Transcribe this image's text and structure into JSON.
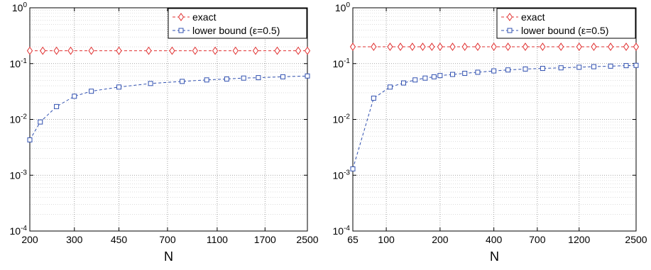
{
  "chart_data": [
    {
      "type": "line",
      "title": "",
      "xlabel": "N",
      "ylabel": "",
      "xscale": "log",
      "yscale": "log",
      "xlim": [
        200,
        2500
      ],
      "ylim": [
        0.0001,
        1
      ],
      "xticks": [
        200,
        300,
        450,
        700,
        1100,
        1700,
        2500
      ],
      "xtick_labels": [
        "200",
        "300",
        "450",
        "700",
        "1100",
        "1700",
        "2500"
      ],
      "yticks": [
        0.0001,
        0.001,
        0.01,
        0.1,
        1
      ],
      "ytick_labels": [
        {
          "base": "10",
          "exp": "-4"
        },
        {
          "base": "10",
          "exp": "-3"
        },
        {
          "base": "10",
          "exp": "-2"
        },
        {
          "base": "10",
          "exp": "-1"
        },
        {
          "base": "10",
          "exp": "0"
        }
      ],
      "grid": true,
      "legend": "top-right",
      "series": [
        {
          "name": "exact",
          "color": "#e03030",
          "marker": "diamond",
          "linestyle": "dashed",
          "x": [
            200,
            225,
            255,
            290,
            350,
            450,
            590,
            730,
            900,
            1080,
            1300,
            1560,
            1900,
            2300,
            2500
          ],
          "y": [
            0.17,
            0.17,
            0.17,
            0.17,
            0.17,
            0.17,
            0.17,
            0.17,
            0.17,
            0.17,
            0.17,
            0.17,
            0.17,
            0.17,
            0.17
          ]
        },
        {
          "name": "lower bound (ε=0.5)",
          "color": "#3050b0",
          "marker": "square",
          "linestyle": "dashed",
          "x": [
            200,
            220,
            255,
            300,
            350,
            450,
            600,
            800,
            1000,
            1200,
            1400,
            1600,
            2000,
            2500
          ],
          "y": [
            0.0043,
            0.009,
            0.017,
            0.026,
            0.032,
            0.038,
            0.044,
            0.048,
            0.051,
            0.053,
            0.055,
            0.056,
            0.058,
            0.06
          ]
        }
      ]
    },
    {
      "type": "line",
      "title": "",
      "xlabel": "N",
      "ylabel": "",
      "xscale": "log",
      "yscale": "log",
      "xlim": [
        65,
        2500
      ],
      "ylim": [
        0.0001,
        1
      ],
      "xticks": [
        65,
        100,
        200,
        400,
        700,
        1200,
        2500
      ],
      "xtick_labels": [
        "65",
        "100",
        "200",
        "400",
        "700",
        "1200",
        "2500"
      ],
      "yticks": [
        0.0001,
        0.001,
        0.01,
        0.1,
        1
      ],
      "ytick_labels": [
        {
          "base": "10",
          "exp": "-4"
        },
        {
          "base": "10",
          "exp": "-3"
        },
        {
          "base": "10",
          "exp": "-2"
        },
        {
          "base": "10",
          "exp": "-1"
        },
        {
          "base": "10",
          "exp": "0"
        }
      ],
      "grid": true,
      "legend": "top-right",
      "series": [
        {
          "name": "exact",
          "color": "#e03030",
          "marker": "diamond",
          "linestyle": "dashed",
          "x": [
            65,
            85,
            105,
            120,
            140,
            160,
            180,
            200,
            235,
            275,
            325,
            400,
            480,
            600,
            750,
            950,
            1200,
            1450,
            1800,
            2200,
            2500
          ],
          "y": [
            0.2,
            0.2,
            0.2,
            0.2,
            0.2,
            0.2,
            0.2,
            0.2,
            0.2,
            0.2,
            0.2,
            0.2,
            0.2,
            0.2,
            0.2,
            0.2,
            0.2,
            0.2,
            0.2,
            0.2,
            0.2
          ]
        },
        {
          "name": "lower bound (ε=0.5)",
          "color": "#3050b0",
          "marker": "square",
          "linestyle": "dashed",
          "x": [
            65,
            85,
            105,
            125,
            145,
            165,
            185,
            200,
            235,
            275,
            325,
            400,
            480,
            600,
            750,
            950,
            1200,
            1450,
            1800,
            2200,
            2500
          ],
          "y": [
            0.0013,
            0.024,
            0.038,
            0.045,
            0.051,
            0.055,
            0.058,
            0.061,
            0.064,
            0.067,
            0.07,
            0.074,
            0.077,
            0.08,
            0.082,
            0.084,
            0.086,
            0.088,
            0.09,
            0.092,
            0.093
          ]
        }
      ]
    }
  ]
}
